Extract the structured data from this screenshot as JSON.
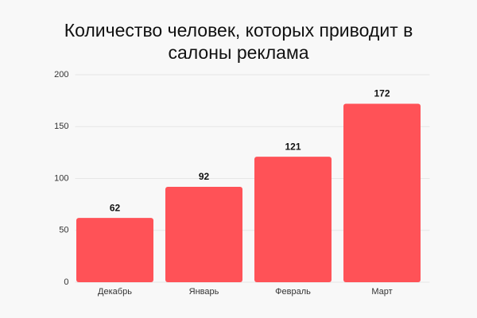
{
  "chart_data": {
    "type": "bar",
    "title": "Количество человек, которых приводит в салоны реклама",
    "categories": [
      "Декабрь",
      "Январь",
      "Февраль",
      "Март"
    ],
    "values": [
      62,
      92,
      121,
      172
    ],
    "color": "#ff5257",
    "ylim": [
      0,
      200
    ],
    "yticks": [
      0,
      50,
      100,
      150,
      200
    ],
    "grid": true
  }
}
